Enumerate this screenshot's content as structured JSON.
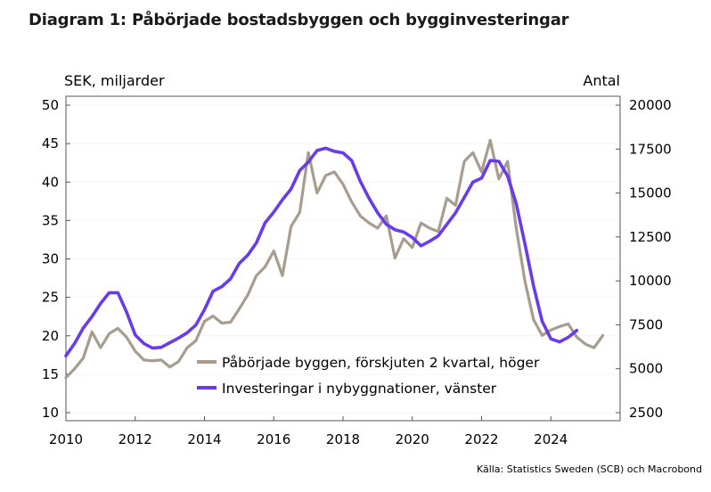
{
  "title": "Diagram 1: Påbörjade bostadsbyggen och bygginvesteringar",
  "source": "Källa: Statistics Sweden (SCB) och Macrobond",
  "colors": {
    "starts": "#a89c8f",
    "investment": "#6a3bea",
    "axis": "#555555",
    "grid": "#f4f4f4"
  },
  "chart_data": {
    "type": "line",
    "left_axis": {
      "label": "SEK, miljarder",
      "range": [
        10,
        50
      ],
      "ticks": [
        "10",
        "15",
        "20",
        "25",
        "30",
        "35",
        "40",
        "45",
        "50"
      ]
    },
    "right_axis": {
      "label": "Antal",
      "range": [
        2500,
        20000
      ],
      "ticks": [
        "2500",
        "5000",
        "7500",
        "10000",
        "12500",
        "15000",
        "17500",
        "20000"
      ]
    },
    "x_axis": {
      "range": [
        2010,
        2026
      ],
      "ticks": [
        "2010",
        "2012",
        "2014",
        "2016",
        "2018",
        "2020",
        "2022",
        "2024"
      ]
    },
    "legend": {
      "placement": "bottom-right"
    },
    "series": [
      {
        "name": "Påbörjade byggen, förskjuten 2 kvartal, höger",
        "axis": "right",
        "x": [
          2010.0,
          2010.25,
          2010.5,
          2010.75,
          2011.0,
          2011.25,
          2011.5,
          2011.75,
          2012.0,
          2012.25,
          2012.5,
          2012.75,
          2013.0,
          2013.25,
          2013.5,
          2013.75,
          2014.0,
          2014.25,
          2014.5,
          2014.75,
          2015.0,
          2015.25,
          2015.5,
          2015.75,
          2016.0,
          2016.25,
          2016.5,
          2016.75,
          2017.0,
          2017.25,
          2017.5,
          2017.75,
          2018.0,
          2018.25,
          2018.5,
          2018.75,
          2019.0,
          2019.25,
          2019.5,
          2019.75,
          2020.0,
          2020.25,
          2020.5,
          2020.75,
          2021.0,
          2021.25,
          2021.5,
          2021.75,
          2022.0,
          2022.25,
          2022.5,
          2022.75,
          2023.0,
          2023.25,
          2023.5,
          2023.75,
          2024.0,
          2024.25,
          2024.5,
          2024.75,
          2025.0,
          2025.25,
          2025.5
        ],
        "values": [
          4500,
          5000,
          5600,
          7100,
          6200,
          7000,
          7300,
          6800,
          6000,
          5500,
          5450,
          5500,
          5100,
          5400,
          6200,
          6600,
          7700,
          8000,
          7600,
          7650,
          8400,
          9200,
          10300,
          10800,
          11700,
          10300,
          13100,
          13900,
          17300,
          15000,
          16000,
          16200,
          15500,
          14500,
          13700,
          13300,
          13000,
          13700,
          11300,
          12400,
          11900,
          13300,
          13000,
          12800,
          14700,
          14300,
          16800,
          17300,
          16200,
          18000,
          15800,
          16800,
          13000,
          10000,
          7800,
          6900,
          7200,
          7400,
          7550,
          6800,
          6400,
          6200,
          6900
        ]
      },
      {
        "name": "Investeringar i nybyggnationer, vänster",
        "axis": "left",
        "x": [
          2010.0,
          2010.25,
          2010.5,
          2010.75,
          2011.0,
          2011.25,
          2011.5,
          2011.75,
          2012.0,
          2012.25,
          2012.5,
          2012.75,
          2013.0,
          2013.25,
          2013.5,
          2013.75,
          2014.0,
          2014.25,
          2014.5,
          2014.75,
          2015.0,
          2015.25,
          2015.5,
          2015.75,
          2016.0,
          2016.25,
          2016.5,
          2016.75,
          2017.0,
          2017.25,
          2017.5,
          2017.75,
          2018.0,
          2018.25,
          2018.5,
          2018.75,
          2019.0,
          2019.25,
          2019.5,
          2019.75,
          2020.0,
          2020.25,
          2020.5,
          2020.75,
          2021.0,
          2021.25,
          2021.5,
          2021.75,
          2022.0,
          2022.25,
          2022.5,
          2022.75,
          2023.0,
          2023.25,
          2023.5,
          2023.75,
          2024.0,
          2024.25,
          2024.5,
          2024.75
        ],
        "values": [
          17.4,
          19.0,
          21.0,
          22.5,
          24.2,
          25.6,
          25.6,
          23.1,
          20.1,
          19.0,
          18.4,
          18.5,
          19.1,
          19.7,
          20.4,
          21.4,
          23.4,
          25.8,
          26.4,
          27.4,
          29.4,
          30.5,
          32.1,
          34.7,
          36.1,
          37.7,
          39.1,
          41.5,
          42.6,
          44.1,
          44.4,
          44.0,
          43.8,
          42.8,
          40.1,
          37.9,
          36.0,
          34.5,
          33.8,
          33.5,
          32.8,
          31.7,
          32.3,
          33.0,
          34.5,
          36.0,
          38.0,
          40.0,
          40.5,
          42.8,
          42.7,
          40.8,
          37.2,
          32.0,
          26.5,
          21.9,
          19.6,
          19.2,
          19.8,
          20.7
        ]
      }
    ]
  }
}
